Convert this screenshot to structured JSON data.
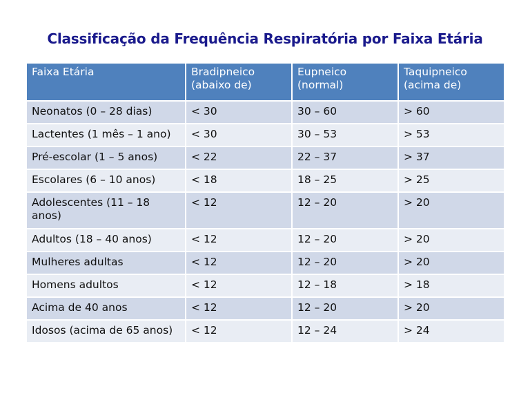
{
  "title": "Classificação da Frequência Respiratória por Faixa Etária",
  "table": {
    "headers": [
      "Faixa Etária",
      "Bradipneico\n(abaixo de)",
      "Eupneico\n(normal)",
      "Taquipneico\n(acima de)"
    ],
    "rows": [
      [
        "Neonatos (0 – 28 dias)",
        "< 30",
        "30 – 60",
        "> 60"
      ],
      [
        "Lactentes (1 mês – 1 ano)",
        "< 30",
        "30 – 53",
        "> 53"
      ],
      [
        "Pré-escolar (1 – 5 anos)",
        "< 22",
        "22 – 37",
        "> 37"
      ],
      [
        "Escolares (6 – 10 anos)",
        "< 18",
        "18 – 25",
        "> 25"
      ],
      [
        "Adolescentes (11 – 18 anos)",
        "< 12",
        "12 – 20",
        "> 20"
      ],
      [
        "Adultos (18 – 40 anos)",
        "< 12",
        "12 – 20",
        "> 20"
      ],
      [
        "Mulheres adultas",
        "< 12",
        "12 – 20",
        "> 20"
      ],
      [
        "Homens adultos",
        "< 12",
        "12 – 18",
        "> 18"
      ],
      [
        "Acima de 40 anos",
        "< 12",
        "12 – 20",
        "> 20"
      ],
      [
        "Idosos (acima de 65 anos)",
        "< 12",
        "12 – 24",
        "> 24"
      ]
    ]
  },
  "colors": {
    "title": "#1a1a8c",
    "header_bg": "#4f81bd",
    "row_odd_bg": "#d0d8e8",
    "row_even_bg": "#e9edf4"
  }
}
